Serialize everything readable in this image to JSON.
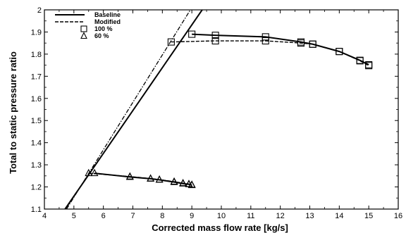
{
  "chart_data": {
    "type": "line",
    "xlabel": "Corrected mass flow rate [kg/s]",
    "ylabel": "Total to static pressure ratio",
    "xlim": [
      4,
      16
    ],
    "ylim": [
      1.1,
      2.0
    ],
    "xticks": [
      "4",
      "5",
      "6",
      "7",
      "8",
      "9",
      "10",
      "11",
      "12",
      "13",
      "14",
      "15",
      "16"
    ],
    "yticks": [
      "1.1",
      "1.2",
      "1.3",
      "1.4",
      "1.5",
      "1.6",
      "1.7",
      "1.8",
      "1.9",
      "2"
    ],
    "grid": false,
    "legend_position": "top-left",
    "legend": [
      {
        "label": "Baseline",
        "style": "solid-line"
      },
      {
        "label": "Modified",
        "style": "dashed-line"
      },
      {
        "label": "100 %",
        "style": "square-marker"
      },
      {
        "label": "60 %",
        "style": "triangle-marker"
      }
    ],
    "series": [
      {
        "name": "Baseline",
        "speed": "100 %",
        "line": "solid",
        "marker": "square",
        "x": [
          9.0,
          9.8,
          11.5,
          12.7,
          13.1,
          14.0,
          14.7,
          15.0
        ],
        "y": [
          1.89,
          1.885,
          1.878,
          1.855,
          1.845,
          1.812,
          1.772,
          1.752
        ]
      },
      {
        "name": "Modified",
        "speed": "100 %",
        "line": "dashed",
        "marker": "square",
        "x": [
          8.3,
          9.8,
          11.5,
          12.7,
          13.1,
          14.0,
          14.7,
          15.0
        ],
        "y": [
          1.855,
          1.86,
          1.86,
          1.85,
          1.845,
          1.812,
          1.77,
          1.748
        ]
      },
      {
        "name": "Baseline",
        "speed": "60 %",
        "line": "solid",
        "marker": "triangle",
        "x": [
          5.7,
          6.9,
          7.6,
          7.9,
          8.4,
          8.7,
          8.9,
          9.0
        ],
        "y": [
          1.262,
          1.245,
          1.237,
          1.232,
          1.222,
          1.215,
          1.212,
          1.208
        ]
      },
      {
        "name": "Modified",
        "speed": "60 %",
        "line": "dashed",
        "marker": "triangle",
        "x": [
          5.5,
          6.9,
          7.6,
          7.9,
          8.4,
          8.7,
          8.9,
          9.0
        ],
        "y": [
          1.262,
          1.247,
          1.238,
          1.233,
          1.224,
          1.217,
          1.213,
          1.21
        ]
      }
    ],
    "surge_lines": [
      {
        "name": "Baseline",
        "line": "solid",
        "x": [
          4.7,
          9.35
        ],
        "y": [
          1.1,
          2.0
        ]
      },
      {
        "name": "Modified",
        "line": "dash-dot",
        "x": [
          4.75,
          8.95
        ],
        "y": [
          1.1,
          2.0
        ]
      }
    ]
  }
}
